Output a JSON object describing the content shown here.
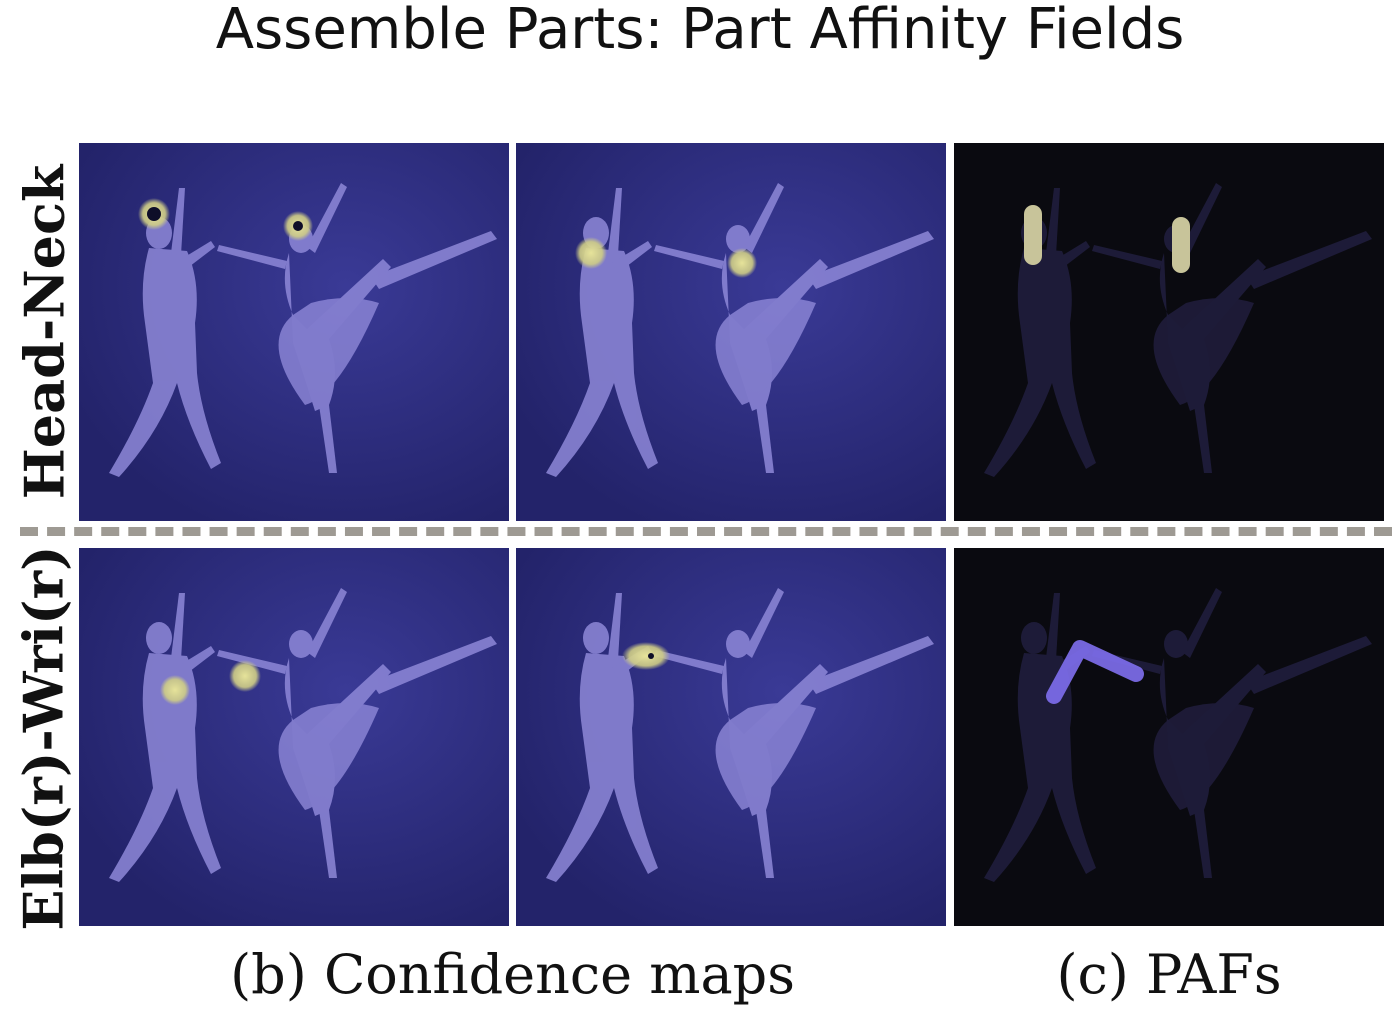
{
  "title": "Assemble Parts: Part Affinity Fields",
  "rows": [
    {
      "label": "Head-Neck"
    },
    {
      "label": "Elb(r)-Wri(r)"
    }
  ],
  "captions": {
    "confidence": "(b) Confidence maps",
    "pafs": "(c) PAFs"
  },
  "colors": {
    "heatmap_background": "#2a2a78",
    "figure_fill": "#8e88d8",
    "highlight": "#d7d48a",
    "paf_background": "#0a0a10",
    "paf_limb": "#7f6ff0",
    "divider": "#9e9a93"
  }
}
